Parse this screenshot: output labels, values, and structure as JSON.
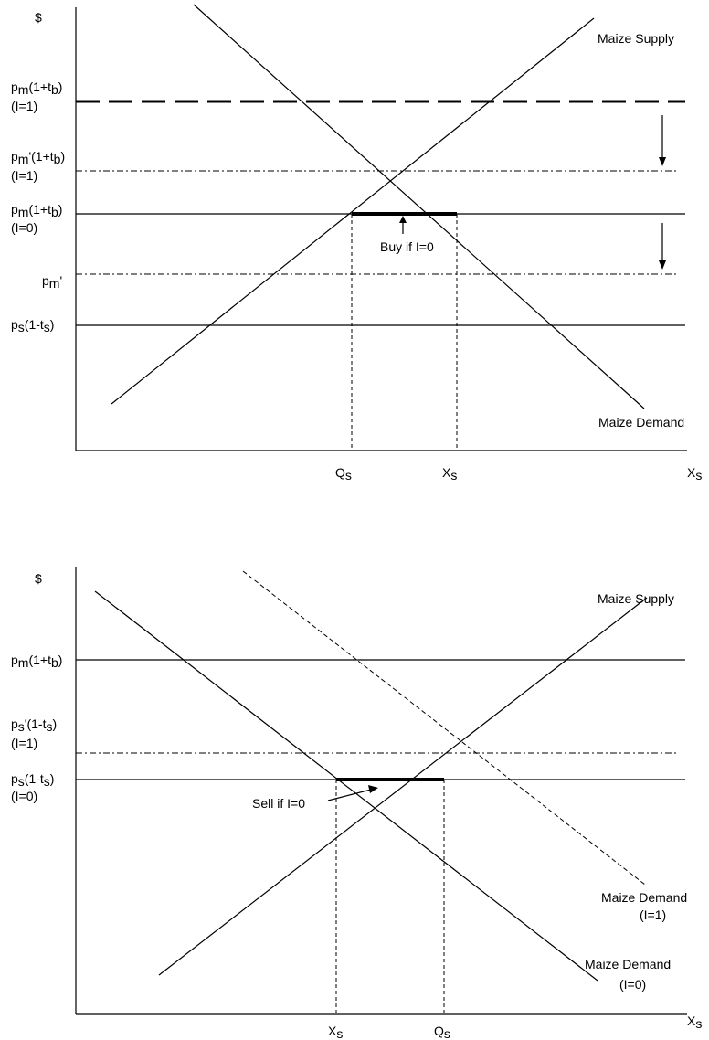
{
  "panels": {
    "top": {
      "y_axis_symbol": "$",
      "price_labels": {
        "pm_tb_I1": {
          "line1": "p",
          "sub1": "m",
          "rest1": "(1+t",
          "sub1b": "b",
          "close1": ")",
          "line2": "(I=1)"
        },
        "pmprime_tb_I1": {
          "line1": "p",
          "sub1": "m",
          "rest1": "'(1+t",
          "sub1b": "b",
          "close1": ")",
          "line2": "(I=1)"
        },
        "pm_tb_I0": {
          "line1": "p",
          "sub1": "m",
          "rest1": "(1+t",
          "sub1b": "b",
          "close1": ")",
          "line2": "(I=0)"
        },
        "pmprime": {
          "line1": "p",
          "sub1": "m",
          "rest1": "'"
        },
        "ps_ts": {
          "line1": "p",
          "sub1": "s",
          "rest1": "(1-t",
          "sub1b": "s",
          "close1": ")"
        }
      },
      "supply_label": "Maize Supply",
      "demand_label": "Maize Demand",
      "annotation": "Buy if I=0",
      "x_ticks": [
        {
          "main": "Q",
          "sub": "s"
        },
        {
          "main": "X",
          "sub": "s"
        }
      ],
      "x_axis": {
        "main": "X",
        "sub": "s"
      }
    },
    "bottom": {
      "y_axis_symbol": "$",
      "price_labels": {
        "pm_tb": {
          "line1": "p",
          "sub1": "m",
          "rest1": "(1+t",
          "sub1b": "b",
          "close1": ")"
        },
        "psprime_ts_I1": {
          "line1": "p",
          "sub1": "s",
          "rest1": "'(1-t",
          "sub1b": "s",
          "close1": ")",
          "line2": "(I=1)"
        },
        "ps_ts_I0": {
          "line1": "p",
          "sub1": "s",
          "rest1": "(1-t",
          "sub1b": "s",
          "close1": ")",
          "line2": "(I=0)"
        }
      },
      "supply_label": "Maize Supply",
      "demand_I1_label": {
        "line1": "Maize Demand",
        "line2": "(I=1)"
      },
      "demand_I0_label": {
        "line1": "Maize Demand",
        "line2": "(I=0)"
      },
      "annotation": "Sell if I=0",
      "x_ticks": [
        {
          "main": "X",
          "sub": "s"
        },
        {
          "main": "Q",
          "sub": "s"
        }
      ],
      "x_axis": {
        "main": "X",
        "sub": "s"
      }
    }
  }
}
